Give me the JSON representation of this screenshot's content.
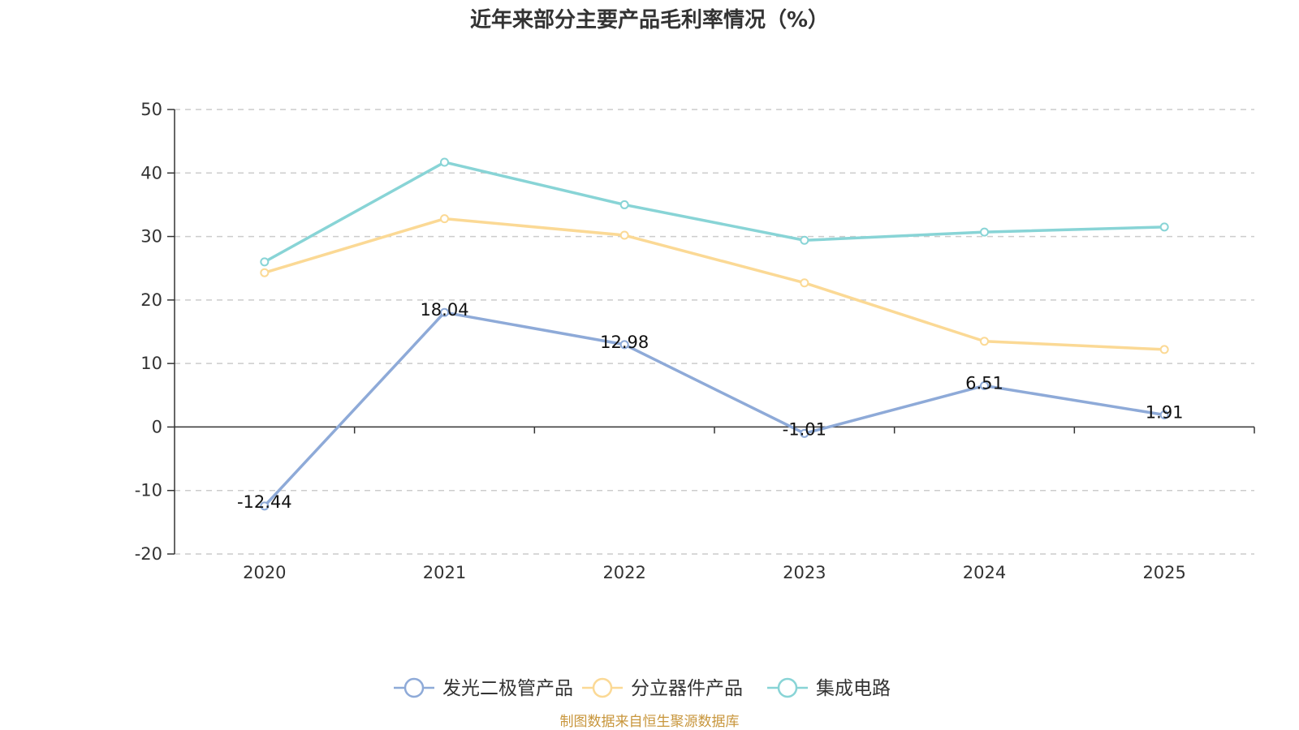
{
  "chart_data": {
    "type": "line",
    "title": "近年来部分主要产品毛利率情况（%）",
    "xlabel": "",
    "ylabel": "",
    "categories": [
      "2020",
      "2021",
      "2022",
      "2023",
      "2024",
      "2025"
    ],
    "ylim": [
      -20,
      50
    ],
    "yticks": [
      "50",
      "40",
      "30",
      "20",
      "10",
      "0",
      "-10",
      "-20"
    ],
    "grid": true,
    "legend_position": "bottom",
    "series": [
      {
        "name": "发光二极管产品",
        "color": "#8eaad8",
        "values": [
          -12.44,
          18.04,
          12.98,
          -1.01,
          6.51,
          1.91
        ],
        "labels": [
          "-12.44",
          "18.04",
          "12.98",
          "-1.01",
          "6.51",
          "1.91"
        ]
      },
      {
        "name": "分立器件产品",
        "color": "#fbd995",
        "values": [
          24.3,
          32.8,
          30.2,
          22.7,
          13.5,
          12.2
        ]
      },
      {
        "name": "集成电路",
        "color": "#88d4d6",
        "values": [
          26.0,
          41.7,
          35.0,
          29.4,
          30.7,
          31.5
        ]
      }
    ]
  },
  "source": {
    "text": "制图数据来自恒生聚源数据库",
    "color": "#c8963c"
  }
}
